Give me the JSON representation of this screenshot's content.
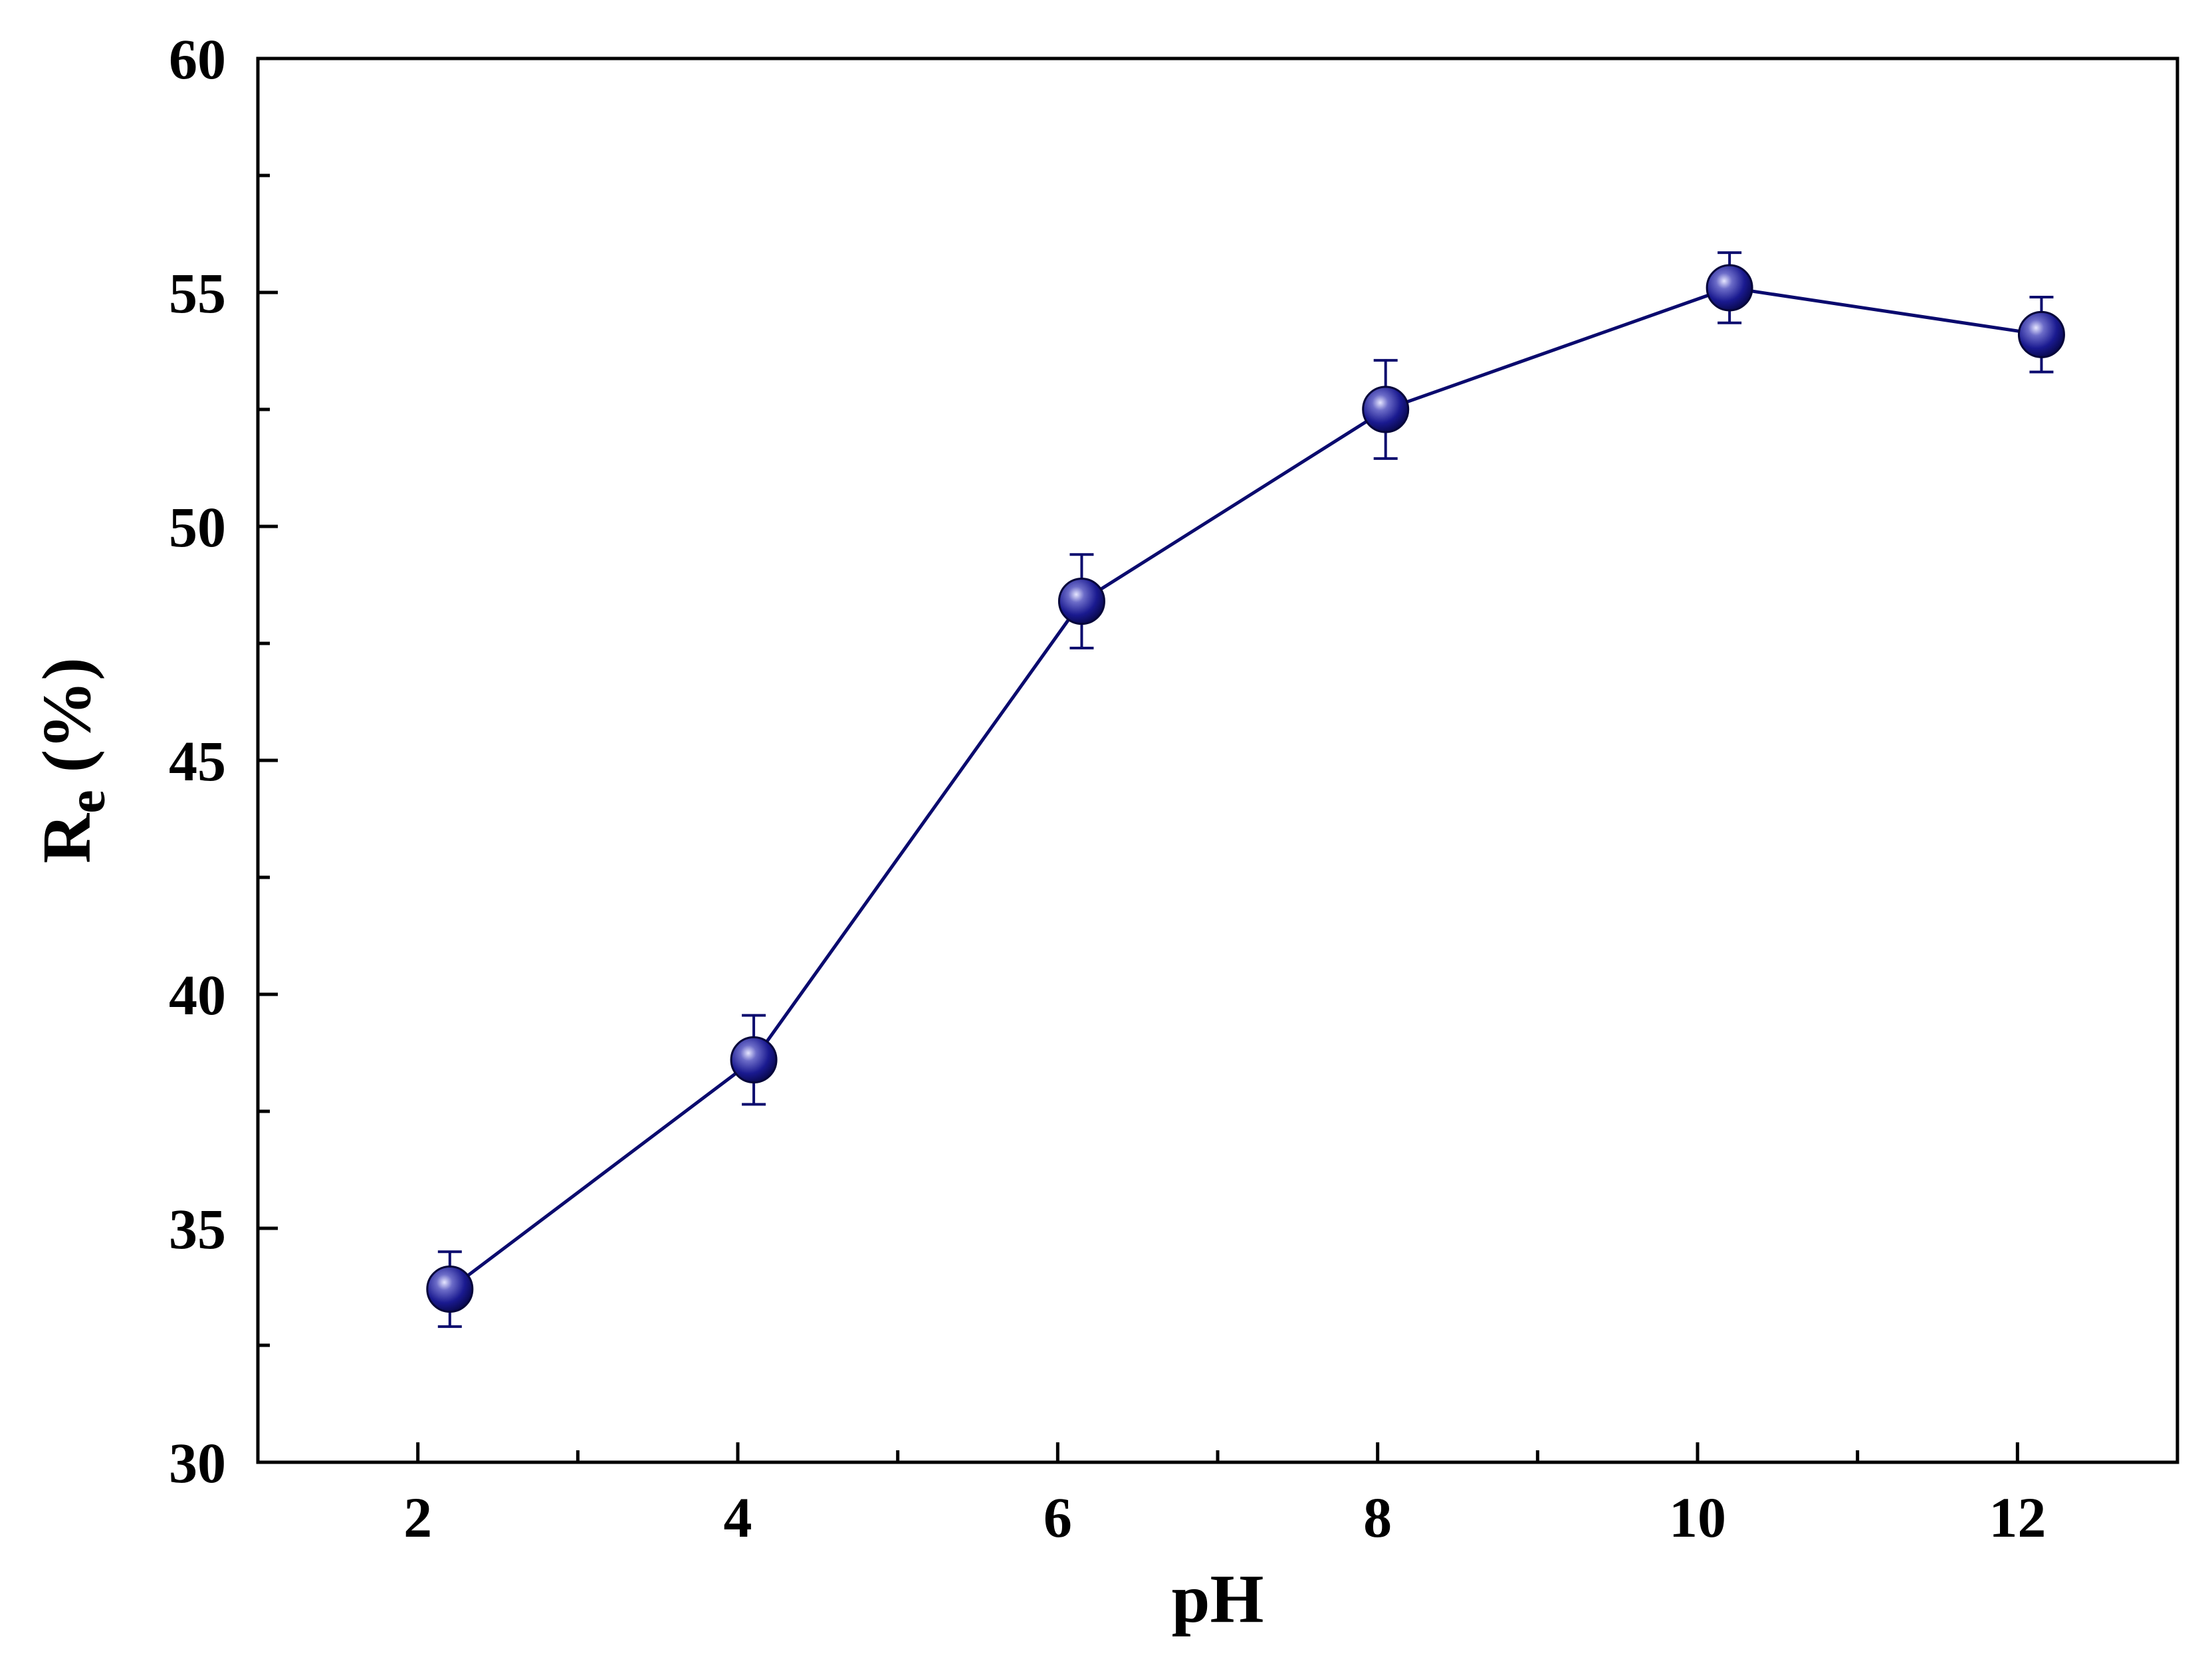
{
  "chart_data": {
    "type": "scatter",
    "xlabel": "pH",
    "ylabel": {
      "main": "R",
      "sub": "e",
      "rest": " (%)"
    },
    "xlim": [
      1,
      13
    ],
    "ylim": [
      30,
      60
    ],
    "x_major_ticks": [
      2,
      4,
      6,
      8,
      10,
      12
    ],
    "x_minor_ticks": [
      3,
      5,
      7,
      9,
      11
    ],
    "y_major_ticks": [
      30,
      35,
      40,
      45,
      50,
      55,
      60
    ],
    "y_minor_ticks": [
      32.5,
      37.5,
      42.5,
      47.5,
      52.5,
      57.5
    ],
    "grid": false,
    "legend": "none",
    "series": [
      {
        "x": [
          2.2,
          4.1,
          6.15,
          8.05,
          10.2,
          12.15
        ],
        "y": [
          33.7,
          38.6,
          48.4,
          52.5,
          55.1,
          54.1
        ],
        "error": [
          0.8,
          0.95,
          1.0,
          1.05,
          0.75,
          0.8
        ],
        "line_style": "solid",
        "marker": "circle"
      }
    ],
    "colors": {
      "series": "#0a0a6e",
      "marker_highlight": "#c8c8f0",
      "axes": "#000000"
    }
  }
}
